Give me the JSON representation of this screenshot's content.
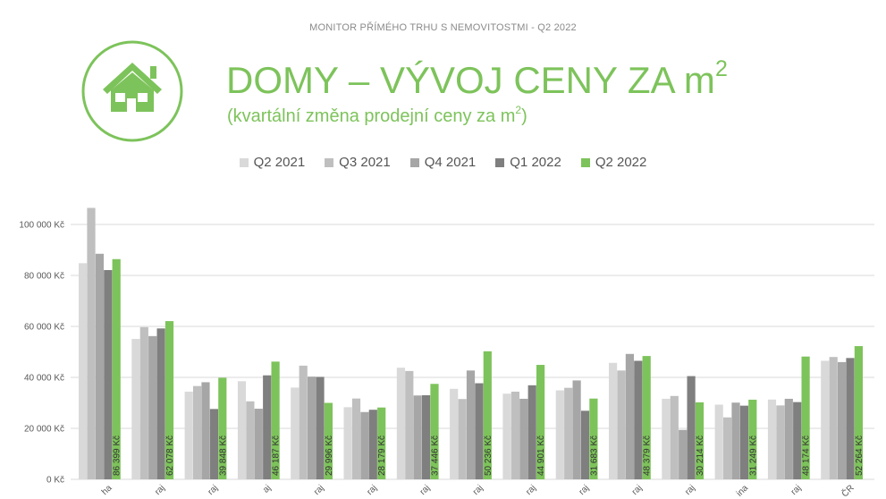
{
  "header": {
    "top_title": "MONITOR PŘÍMÉHO TRHU S NEMOVITOSTMI - Q2 2022"
  },
  "title": {
    "text": "DOMY – VÝVOJ CENY ZA m",
    "sup": "2"
  },
  "subtitle": {
    "text": "(kvartální změna prodejní ceny za m",
    "sup": "2",
    "tail": ")"
  },
  "icon": {
    "name": "house-icon",
    "color": "#7dc35b"
  },
  "colors": {
    "series": [
      "#d9d9d9",
      "#bfbfbf",
      "#a6a6a6",
      "#7f7f7f",
      "#7dc35b"
    ],
    "grid": "#d9d9d9",
    "axis_text": "#595959"
  },
  "chart_data": {
    "type": "bar",
    "categories": [
      "Praha",
      "Středočeský kraj",
      "Jihočeský kraj",
      "Plzeňský kraj",
      "Karlovarský kraj",
      "Ústecký kraj",
      "Liberecký kraj",
      "Královéhradecký kraj",
      "Pardubický kraj",
      "Kraj Vysočina",
      "Jihomoravský kraj",
      "Olomoucký kraj",
      "Zlínský kraj",
      "Moravskoslezský kraj",
      "ČR"
    ],
    "category_labels_visible": [
      "ha",
      "raj",
      "raj",
      "aj",
      "raj",
      "raj",
      "raj",
      "raj",
      "raj",
      "raj",
      "raj",
      "raj",
      "ina",
      "raj",
      "ČR"
    ],
    "series": [
      {
        "name": "Q2 2021",
        "values": [
          84800,
          55100,
          34400,
          38500,
          36000,
          28300,
          43800,
          35500,
          33600,
          34900,
          45700,
          31600,
          29300,
          31300,
          46500
        ]
      },
      {
        "name": "Q3 2021",
        "values": [
          106500,
          59700,
          36600,
          30600,
          44600,
          31700,
          42500,
          31500,
          34400,
          35900,
          42700,
          32700,
          24300,
          29000,
          48000
        ]
      },
      {
        "name": "Q4 2021",
        "values": [
          88500,
          56200,
          38100,
          27700,
          40300,
          26400,
          32900,
          42700,
          31600,
          38800,
          49200,
          19400,
          30100,
          31600,
          46000
        ]
      },
      {
        "name": "Q1 2022",
        "values": [
          82100,
          59200,
          27600,
          40800,
          40200,
          27300,
          33000,
          37700,
          36900,
          26900,
          46500,
          40500,
          28900,
          30300,
          47600
        ]
      },
      {
        "name": "Q2 2022",
        "values": [
          86399,
          62078,
          39848,
          46187,
          29996,
          28179,
          37446,
          50236,
          44901,
          31683,
          48379,
          30214,
          31249,
          48174,
          52264
        ]
      }
    ],
    "data_labels": [
      "86 399 Kč",
      "62 078 Kč",
      "39 848 Kč",
      "46 187 Kč",
      "29 996 Kč",
      "28 179 Kč",
      "37 446 Kč",
      "50 236 Kč",
      "44 901 Kč",
      "31 683 Kč",
      "48 379 Kč",
      "30 214 Kč",
      "31 249 Kč",
      "48 174 Kč",
      "52 264 Kč"
    ],
    "y_ticks": [
      "0 Kč",
      "20 000 Kč",
      "40 000 Kč",
      "60 000 Kč",
      "80 000 Kč",
      "100 000 Kč"
    ],
    "ylim": [
      0,
      110000
    ],
    "grid": true,
    "legend": "top-center"
  }
}
